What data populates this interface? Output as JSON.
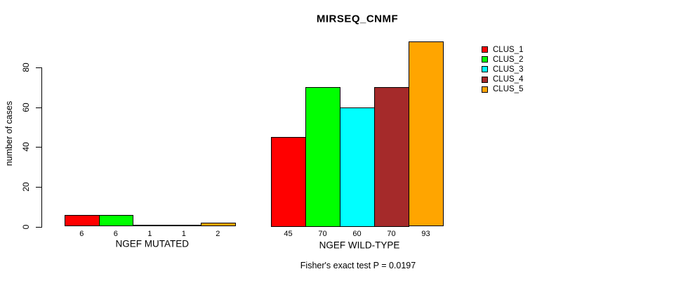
{
  "chart_data": {
    "type": "bar",
    "title": "MIRSEQ_CNMF",
    "xlabel": "",
    "ylabel": "number of cases",
    "categories": [
      "NGEF MUTATED",
      "NGEF WILD-TYPE"
    ],
    "series": [
      {
        "name": "CLUS_1",
        "color": "#ff0000",
        "values": [
          6,
          45
        ]
      },
      {
        "name": "CLUS_2",
        "color": "#00ff00",
        "values": [
          6,
          70
        ]
      },
      {
        "name": "CLUS_3",
        "color": "#00ffff",
        "values": [
          1,
          60
        ]
      },
      {
        "name": "CLUS_4",
        "color": "#a52a2a",
        "values": [
          1,
          70
        ]
      },
      {
        "name": "CLUS_5",
        "color": "#ffa500",
        "values": [
          2,
          93
        ]
      }
    ],
    "legend": [
      "CLUS_1",
      "CLUS_2",
      "CLUS_3",
      "CLUS_4",
      "CLUS_5"
    ],
    "legend_position": "right",
    "yticks": [
      0,
      20,
      40,
      60,
      80
    ],
    "ylim": [
      0,
      93
    ],
    "grid": false,
    "bar_value_labels_shown": true,
    "annotation": "Fisher's exact test P = 0.0197"
  }
}
